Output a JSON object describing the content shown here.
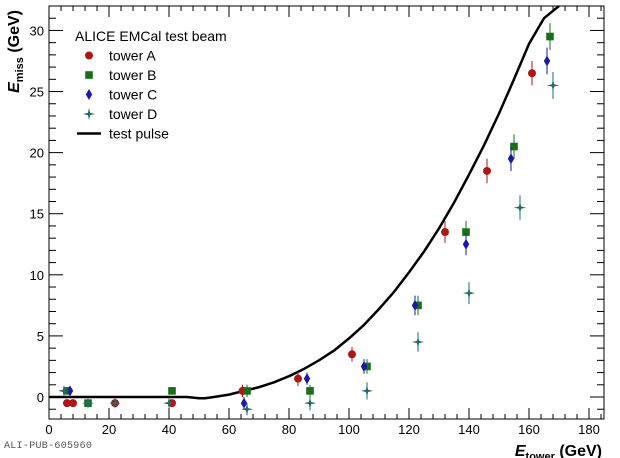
{
  "chart_data": {
    "type": "scatter",
    "xlabel": "E",
    "xlabel_sub": "tower",
    "xlabel_unit": "(GeV)",
    "ylabel": "E",
    "ylabel_sub": "miss",
    "ylabel_unit": "(GeV)",
    "xlim": [
      0,
      185
    ],
    "ylim": [
      -1.8,
      32
    ],
    "xticks": [
      0,
      20,
      40,
      60,
      80,
      100,
      120,
      140,
      160,
      180
    ],
    "yticks": [
      0,
      5,
      10,
      15,
      20,
      25,
      30
    ],
    "legend_title": "ALICE EMCal test beam",
    "legend_position": "top-left",
    "grid": false,
    "series": [
      {
        "name": "tower A",
        "marker": "circle",
        "color": "#b01515",
        "points": [
          {
            "x": 6,
            "y": -0.5,
            "err": 0.3
          },
          {
            "x": 8,
            "y": -0.5,
            "err": 0.3
          },
          {
            "x": 22,
            "y": -0.5,
            "err": 0.3
          },
          {
            "x": 41,
            "y": -0.5,
            "err": 0.3
          },
          {
            "x": 64.5,
            "y": 0.5,
            "err": 0.5
          },
          {
            "x": 83,
            "y": 1.5,
            "err": 0.6
          },
          {
            "x": 101,
            "y": 3.5,
            "err": 0.6
          },
          {
            "x": 132,
            "y": 13.5,
            "err": 0.9
          },
          {
            "x": 146,
            "y": 18.5,
            "err": 1.0
          },
          {
            "x": 161,
            "y": 26.5,
            "err": 1.0
          }
        ]
      },
      {
        "name": "tower B",
        "marker": "square",
        "color": "#1a6e1a",
        "points": [
          {
            "x": 6,
            "y": 0.5,
            "err": 0.3
          },
          {
            "x": 13,
            "y": -0.5,
            "err": 0.3
          },
          {
            "x": 41,
            "y": 0.5,
            "err": 0.3
          },
          {
            "x": 66,
            "y": 0.5,
            "err": 0.5
          },
          {
            "x": 87,
            "y": 0.5,
            "err": 0.5
          },
          {
            "x": 106,
            "y": 2.5,
            "err": 0.6
          },
          {
            "x": 123,
            "y": 7.5,
            "err": 0.8
          },
          {
            "x": 139,
            "y": 13.5,
            "err": 0.9
          },
          {
            "x": 155,
            "y": 20.5,
            "err": 1.0
          },
          {
            "x": 167,
            "y": 29.5,
            "err": 1.1
          }
        ]
      },
      {
        "name": "tower C",
        "marker": "diamond",
        "color": "#1a1aa8",
        "points": [
          {
            "x": 7,
            "y": 0.5,
            "err": 0.3
          },
          {
            "x": 65,
            "y": -0.5,
            "err": 0.5
          },
          {
            "x": 86,
            "y": 1.5,
            "err": 0.5
          },
          {
            "x": 105,
            "y": 2.5,
            "err": 0.6
          },
          {
            "x": 122,
            "y": 7.5,
            "err": 0.8
          },
          {
            "x": 139,
            "y": 12.5,
            "err": 0.9
          },
          {
            "x": 154,
            "y": 19.5,
            "err": 1.0
          },
          {
            "x": 166,
            "y": 27.5,
            "err": 1.1
          }
        ]
      },
      {
        "name": "tower D",
        "marker": "star",
        "color": "#1f6b6b",
        "points": [
          {
            "x": 5,
            "y": 0.5,
            "err": 0.3
          },
          {
            "x": 13,
            "y": -0.5,
            "err": 0.3
          },
          {
            "x": 22,
            "y": -0.5,
            "err": 0.3
          },
          {
            "x": 40,
            "y": -0.5,
            "err": 0.3
          },
          {
            "x": 66,
            "y": -1.0,
            "err": 0.5
          },
          {
            "x": 87,
            "y": -0.5,
            "err": 0.6
          },
          {
            "x": 106,
            "y": 0.5,
            "err": 0.7
          },
          {
            "x": 123,
            "y": 4.5,
            "err": 0.8
          },
          {
            "x": 140,
            "y": 8.5,
            "err": 0.9
          },
          {
            "x": 157,
            "y": 15.5,
            "err": 1.0
          },
          {
            "x": 168,
            "y": 25.5,
            "err": 1.1
          }
        ]
      },
      {
        "name": "test pulse",
        "type": "line",
        "color": "#000000",
        "x": [
          0,
          46,
          48,
          50,
          52,
          55,
          60,
          65,
          70,
          75,
          80,
          85,
          90,
          95,
          100,
          105,
          110,
          115,
          120,
          125,
          130,
          135,
          140,
          145,
          150,
          155,
          160,
          165,
          170
        ],
        "y": [
          0,
          0,
          -0.05,
          -0.1,
          -0.1,
          0.0,
          0.2,
          0.5,
          0.8,
          1.2,
          1.7,
          2.3,
          3.0,
          3.8,
          4.8,
          5.9,
          7.2,
          8.6,
          10.2,
          11.9,
          13.8,
          15.9,
          18.2,
          20.6,
          23.2,
          26.0,
          28.9,
          31.0,
          32.0
        ]
      }
    ]
  },
  "footer_credit": "ALI-PUB-605960"
}
